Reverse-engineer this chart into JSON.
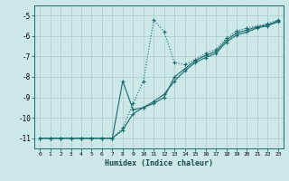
{
  "xlabel": "Humidex (Indice chaleur)",
  "bg_color": "#cce8e8",
  "grid_color": "#aacccc",
  "line_color": "#1a6b6b",
  "xlim": [
    -0.5,
    23.5
  ],
  "ylim": [
    -11.5,
    -4.5
  ],
  "xticks": [
    0,
    1,
    2,
    3,
    4,
    5,
    6,
    7,
    8,
    9,
    10,
    11,
    12,
    13,
    14,
    15,
    16,
    17,
    18,
    19,
    20,
    21,
    22,
    23
  ],
  "yticks": [
    -11,
    -10,
    -9,
    -8,
    -7,
    -6,
    -5
  ],
  "line1_x": [
    0,
    1,
    2,
    3,
    4,
    5,
    6,
    7,
    8,
    9,
    10,
    11,
    12,
    13,
    14,
    15,
    16,
    17,
    18,
    19,
    20,
    21,
    22,
    23
  ],
  "line1_y": [
    -11,
    -11,
    -11,
    -11,
    -11,
    -11,
    -11,
    -11,
    -10.5,
    -9.3,
    -8.2,
    -5.2,
    -5.8,
    -7.3,
    -7.4,
    -7.15,
    -6.85,
    -6.65,
    -6.1,
    -5.75,
    -5.6,
    -5.5,
    -5.4,
    -5.2
  ],
  "line2_x": [
    0,
    1,
    2,
    3,
    4,
    5,
    6,
    7,
    8,
    9,
    10,
    11,
    12,
    13,
    14,
    15,
    16,
    17,
    18,
    19,
    20,
    21,
    22,
    23
  ],
  "line2_y": [
    -11,
    -11,
    -11,
    -11,
    -11,
    -11,
    -11,
    -11,
    -8.2,
    -9.6,
    -9.5,
    -9.3,
    -9.0,
    -8.0,
    -7.6,
    -7.2,
    -6.95,
    -6.75,
    -6.2,
    -5.85,
    -5.7,
    -5.55,
    -5.45,
    -5.25
  ],
  "line3_x": [
    0,
    1,
    2,
    3,
    4,
    5,
    6,
    7,
    8,
    9,
    10,
    11,
    12,
    13,
    14,
    15,
    16,
    17,
    18,
    19,
    20,
    21,
    22,
    23
  ],
  "line3_y": [
    -11,
    -11,
    -11,
    -11,
    -11,
    -11,
    -11,
    -11,
    -10.6,
    -9.8,
    -9.5,
    -9.2,
    -8.85,
    -8.2,
    -7.7,
    -7.3,
    -7.05,
    -6.85,
    -6.3,
    -5.95,
    -5.8,
    -5.6,
    -5.5,
    -5.3
  ]
}
